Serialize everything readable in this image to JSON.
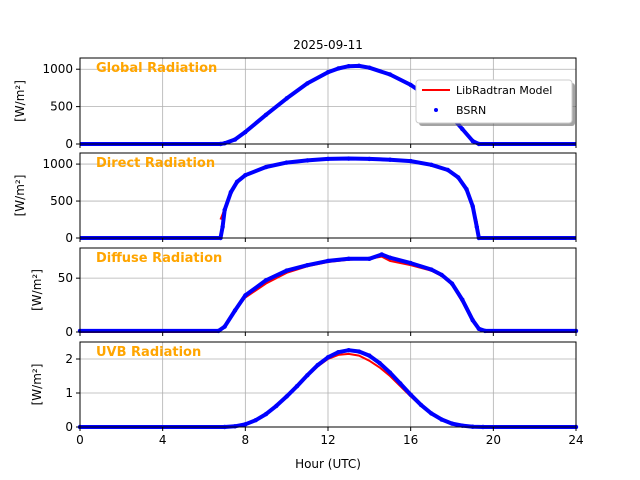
{
  "figure": {
    "title": "2025-09-11",
    "xlabel": "Hour (UTC)",
    "xlim": [
      0,
      24
    ],
    "xticks": [
      "0",
      "4",
      "8",
      "12",
      "16",
      "20",
      "24"
    ],
    "xtick_values": [
      0,
      4,
      8,
      12,
      16,
      20,
      24
    ],
    "colors": {
      "model": "#ff0000",
      "measured": "#0000ff",
      "panel_label": "#ffa500",
      "grid": "#b0b0b0"
    },
    "legend": {
      "placement": "top-right of first panel",
      "entries": [
        "LibRadtran Model",
        "BSRN"
      ]
    }
  },
  "chart_data": [
    {
      "type": "line",
      "panel_label": "Global Radiation",
      "ylabel": "[W/m²]",
      "ylim": [
        0,
        1150
      ],
      "yticks": [
        0,
        500,
        1000
      ],
      "grid": true,
      "x": [
        6.8,
        7.0,
        7.5,
        8,
        9,
        10,
        11,
        12,
        12.5,
        13,
        13.5,
        14,
        15,
        16,
        17,
        18,
        18.5,
        19,
        19.3
      ],
      "series": [
        {
          "name": "LibRadtran Model",
          "values": [
            0,
            10,
            60,
            160,
            390,
            610,
            810,
            960,
            1010,
            1040,
            1040,
            1020,
            930,
            790,
            600,
            360,
            200,
            40,
            0
          ]
        },
        {
          "name": "BSRN",
          "values": [
            0,
            10,
            60,
            160,
            390,
            610,
            810,
            960,
            1010,
            1040,
            1045,
            1020,
            930,
            790,
            600,
            360,
            200,
            40,
            0
          ]
        }
      ]
    },
    {
      "type": "line",
      "panel_label": "Direct Radiation",
      "ylabel": "[W/m²]",
      "ylim": [
        0,
        1150
      ],
      "yticks": [
        0,
        500,
        1000
      ],
      "grid": true,
      "x": [
        6.8,
        6.9,
        7.0,
        7.3,
        7.6,
        8,
        9,
        10,
        11,
        12,
        13,
        14,
        15,
        16,
        17,
        17.8,
        18.3,
        18.7,
        19.0,
        19.2,
        19.3
      ],
      "series": [
        {
          "name": "LibRadtran Model",
          "values": [
            250,
            320,
            400,
            620,
            760,
            850,
            960,
            1020,
            1050,
            1070,
            1075,
            1070,
            1060,
            1040,
            990,
            920,
            820,
            660,
            430,
            220,
            0
          ]
        },
        {
          "name": "BSRN",
          "values": [
            0,
            150,
            380,
            620,
            760,
            850,
            960,
            1020,
            1050,
            1070,
            1075,
            1070,
            1060,
            1040,
            990,
            920,
            820,
            660,
            430,
            150,
            0
          ]
        }
      ]
    },
    {
      "type": "line",
      "panel_label": "Diffuse Radiation",
      "ylabel": "[W/m²]",
      "ylim": [
        0,
        78
      ],
      "yticks": [
        0,
        50
      ],
      "grid": true,
      "x": [
        0,
        6.7,
        7.0,
        7.5,
        8,
        9,
        10,
        11,
        12,
        13,
        14,
        14.6,
        15,
        16,
        17,
        17.5,
        18,
        18.5,
        19,
        19.3,
        19.6,
        24
      ],
      "series": [
        {
          "name": "LibRadtran Model",
          "values": [
            0,
            0,
            5,
            20,
            32,
            45,
            55,
            61,
            65,
            67,
            68,
            70,
            66,
            62,
            57,
            52,
            44,
            28,
            10,
            2,
            0,
            0
          ]
        },
        {
          "name": "BSRN",
          "values": [
            1,
            1,
            5,
            20,
            34,
            48,
            57,
            62,
            66,
            68,
            68,
            72,
            69,
            64,
            58,
            53,
            45,
            30,
            11,
            3,
            1,
            1
          ]
        }
      ]
    },
    {
      "type": "line",
      "panel_label": "UVB Radiation",
      "ylabel": "[W/m²]",
      "ylim": [
        0,
        2.5
      ],
      "yticks": [
        0,
        1,
        2
      ],
      "grid": true,
      "x": [
        0,
        7.0,
        7.5,
        8,
        8.5,
        9,
        9.5,
        10,
        10.5,
        11,
        11.5,
        12,
        12.5,
        13,
        13.5,
        14,
        14.5,
        15,
        15.5,
        16,
        16.5,
        17,
        17.5,
        18,
        18.5,
        19,
        19.5,
        24
      ],
      "series": [
        {
          "name": "LibRadtran Model",
          "values": [
            0,
            0,
            0.02,
            0.08,
            0.2,
            0.38,
            0.62,
            0.9,
            1.2,
            1.5,
            1.78,
            2.0,
            2.12,
            2.15,
            2.1,
            1.95,
            1.75,
            1.5,
            1.2,
            0.9,
            0.62,
            0.38,
            0.2,
            0.09,
            0.03,
            0.01,
            0,
            0
          ]
        },
        {
          "name": "BSRN",
          "values": [
            0,
            0,
            0.02,
            0.08,
            0.2,
            0.38,
            0.62,
            0.9,
            1.2,
            1.52,
            1.82,
            2.05,
            2.2,
            2.26,
            2.22,
            2.1,
            1.88,
            1.6,
            1.28,
            0.95,
            0.65,
            0.4,
            0.22,
            0.1,
            0.04,
            0.01,
            0,
            0
          ]
        }
      ]
    }
  ]
}
